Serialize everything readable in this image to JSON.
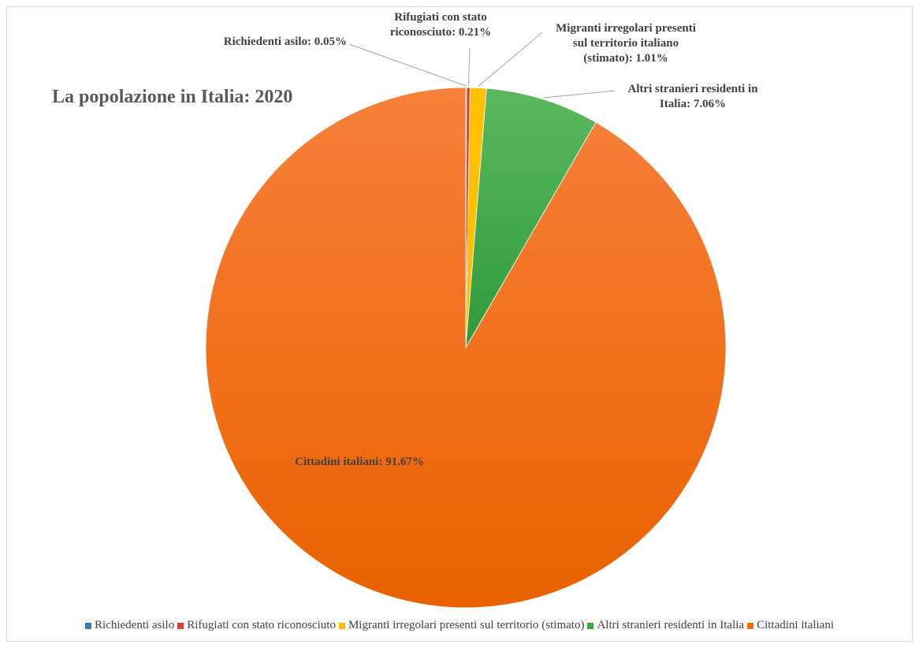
{
  "chart_data": {
    "type": "pie",
    "title": "La popolazione in Italia: 2020",
    "slices": [
      {
        "name": "Richiedenti asilo",
        "value": 0.05,
        "label_lines": [
          "Richiedenti asilo: 0.05%"
        ],
        "color": "#4472c4"
      },
      {
        "name": "Rifugiati con stato riconosciuto",
        "value": 0.21,
        "label_lines": [
          "Rifugiati con stato",
          "riconosciuto: 0.21%"
        ],
        "color": "#e03c31"
      },
      {
        "name": "Migranti irregolari presenti sul territorio (stimato)",
        "value": 1.01,
        "label_lines": [
          "Migranti irregolari presenti",
          "sul territorio italiano",
          "(stimato): 1.01%"
        ],
        "color": "#ffc000"
      },
      {
        "name": "Altri stranieri residenti in Italia",
        "value": 7.06,
        "label_lines": [
          "Altri stranieri residenti in",
          "Italia: 7.06%"
        ],
        "color": "#3da745"
      },
      {
        "name": "Cittadini italiani",
        "value": 91.67,
        "label_lines": [
          "Cittadini italiani: 91.67%"
        ],
        "color": "#f26b10"
      }
    ],
    "legend_position": "bottom"
  }
}
